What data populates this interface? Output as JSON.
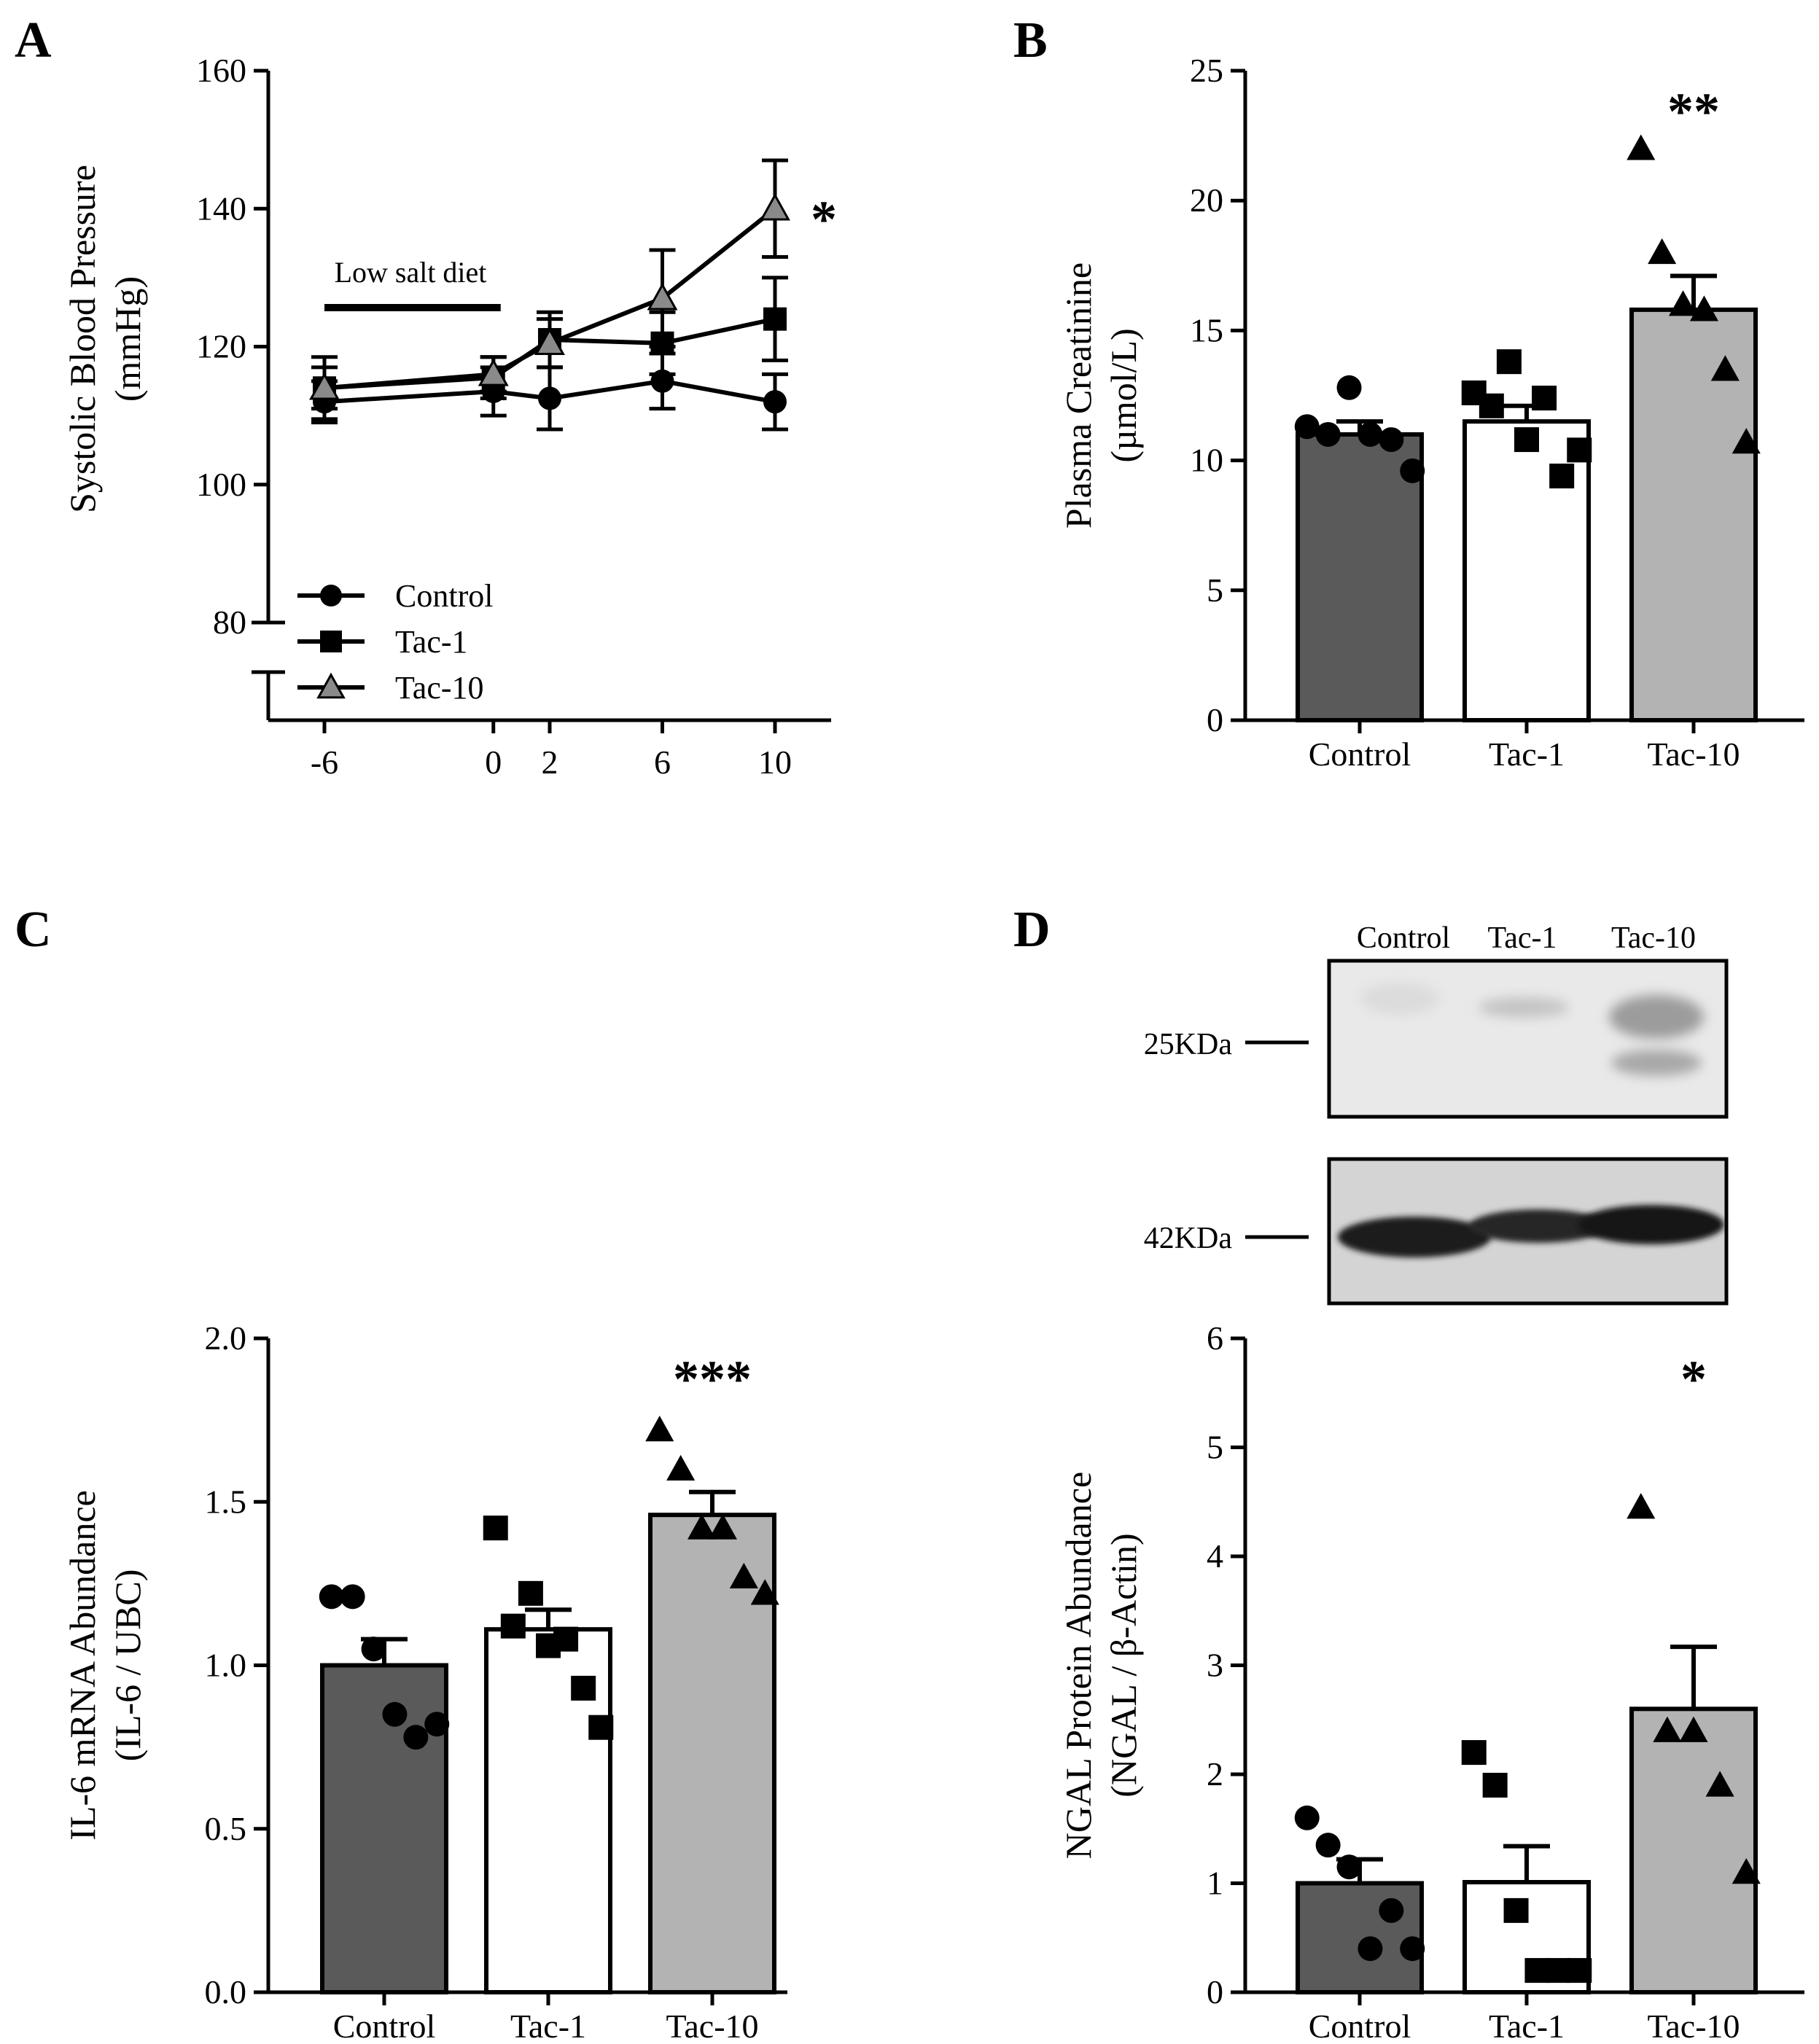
{
  "colors": {
    "control": "#5a5a5a",
    "tac1": "#ffffff",
    "tac10": "#b3b3b3",
    "axis": "#000000"
  },
  "chart_data": [
    {
      "panel": "A",
      "type": "line",
      "xlabel": "",
      "ylabel": [
        "Systolic Blood Pressure",
        "(mmHg)"
      ],
      "x_ticks": [
        "-6",
        "0",
        "2",
        "6",
        "10"
      ],
      "x": [
        -6,
        0,
        2,
        6,
        10
      ],
      "ylim": [
        80,
        160
      ],
      "y_ticks": [
        "80",
        "100",
        "120",
        "140",
        "160"
      ],
      "annotation": "Low salt diet",
      "annotation_x_range": [
        -6,
        0
      ],
      "significance": "*",
      "series": [
        {
          "name": "Control",
          "marker": "circle",
          "values": [
            112,
            113.5,
            112.5,
            115,
            112
          ],
          "sem": [
            3,
            3.5,
            4.5,
            4,
            4
          ]
        },
        {
          "name": "Tac-1",
          "marker": "square",
          "values": [
            114,
            115.5,
            121,
            120.5,
            124
          ],
          "sem": [
            4.5,
            3,
            4,
            4.5,
            6
          ]
        },
        {
          "name": "Tac-10",
          "marker": "triangle",
          "values": [
            114,
            116,
            120.5,
            127,
            140
          ],
          "sem": [
            3,
            2.5,
            3.5,
            7,
            7
          ]
        }
      ]
    },
    {
      "panel": "B",
      "type": "bar",
      "categories": [
        "Control",
        "Tac-1",
        "Tac-10"
      ],
      "values": [
        11,
        11.5,
        15.8
      ],
      "sem": [
        0.5,
        0.6,
        1.3
      ],
      "points": [
        [
          11.3,
          11,
          12.8,
          11,
          10.8,
          9.6
        ],
        [
          12.6,
          12.1,
          13.8,
          10.8,
          12.4,
          9.4,
          10.4
        ],
        [
          22,
          18,
          16,
          15.8,
          13.5,
          10.7
        ]
      ],
      "markers": [
        "circle",
        "square",
        "triangle"
      ],
      "ylim": [
        0,
        25
      ],
      "y_ticks": [
        "0",
        "5",
        "10",
        "15",
        "20",
        "25"
      ],
      "ylabel": [
        "Plasma Creatinine",
        "(µmol/L)"
      ],
      "significance": "**"
    },
    {
      "panel": "C",
      "type": "bar",
      "categories": [
        "Control",
        "Tac-1",
        "Tac-10"
      ],
      "values": [
        1.0,
        1.11,
        1.46
      ],
      "sem": [
        0.08,
        0.06,
        0.07
      ],
      "points": [
        [
          1.21,
          1.21,
          1.05,
          0.85,
          0.78,
          0.82
        ],
        [
          1.42,
          1.12,
          1.22,
          1.06,
          1.08,
          0.93,
          0.81
        ],
        [
          1.72,
          1.6,
          1.42,
          1.42,
          1.27,
          1.22
        ]
      ],
      "markers": [
        "circle",
        "square",
        "triangle"
      ],
      "ylim": [
        0,
        2
      ],
      "y_ticks": [
        "0.0",
        "0.5",
        "1.0",
        "1.5",
        "2.0"
      ],
      "ylabel": [
        "IL-6 mRNA Abundance",
        "(IL-6 / UBC)"
      ],
      "significance": "***"
    },
    {
      "panel": "D",
      "type": "bar",
      "categories": [
        "Control",
        "Tac-1",
        "Tac-10"
      ],
      "values": [
        1.0,
        1.01,
        2.6
      ],
      "sem": [
        0.22,
        0.33,
        0.57
      ],
      "points": [
        [
          1.6,
          1.35,
          1.15,
          0.4,
          0.75,
          0.4
        ],
        [
          2.2,
          1.9,
          0.75,
          0.2,
          0.2,
          0.2
        ],
        [
          4.45,
          2.4,
          2.4,
          1.9,
          1.1
        ]
      ],
      "markers": [
        "circle",
        "square",
        "triangle"
      ],
      "ylim": [
        0,
        6
      ],
      "y_ticks": [
        "0",
        "1",
        "2",
        "3",
        "4",
        "5",
        "6"
      ],
      "ylabel": [
        "NGAL Protein Abundance",
        "(NGAL / β-Actin)"
      ],
      "significance": "*"
    }
  ],
  "panels": {
    "a": "A",
    "b": "B",
    "c": "C",
    "d": "D"
  },
  "blot": {
    "lanes": [
      "Control",
      "Tac-1",
      "Tac-10"
    ],
    "marker_top": "25KDa",
    "marker_bottom": "42KDa"
  }
}
